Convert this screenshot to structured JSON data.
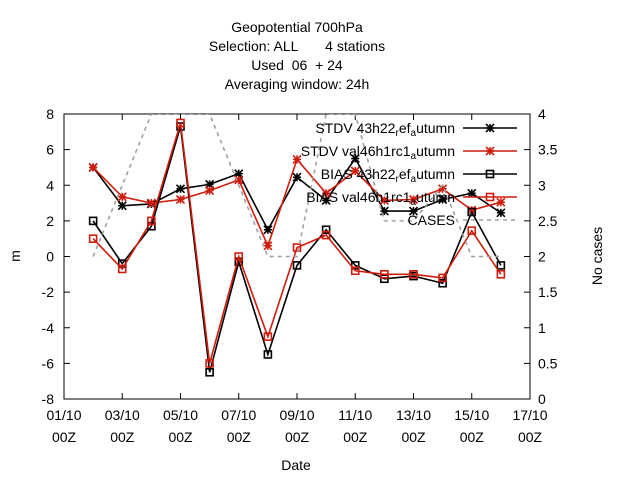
{
  "chart_data": {
    "type": "line",
    "title_lines": [
      "Geopotential 700hPa",
      "Selection: ALL       4 stations",
      "Used  06  + 24",
      "Averaging window: 24h"
    ],
    "xlabel": "Date",
    "ylabel": "m",
    "y2label": "No cases",
    "xlim": [
      1,
      17
    ],
    "ylim": [
      -8,
      8
    ],
    "y2lim": [
      0,
      4
    ],
    "x_ticks": [
      1,
      3,
      5,
      7,
      9,
      11,
      13,
      15,
      17
    ],
    "x_tick_labels": [
      [
        "01/10",
        "00Z"
      ],
      [
        "03/10",
        "00Z"
      ],
      [
        "05/10",
        "00Z"
      ],
      [
        "07/10",
        "00Z"
      ],
      [
        "09/10",
        "00Z"
      ],
      [
        "11/10",
        "00Z"
      ],
      [
        "13/10",
        "00Z"
      ],
      [
        "15/10",
        "00Z"
      ],
      [
        "17/10",
        "00Z"
      ]
    ],
    "y_ticks": [
      -8,
      -6,
      -4,
      -2,
      0,
      2,
      4,
      6,
      8
    ],
    "y2_ticks": [
      0,
      0.5,
      1,
      1.5,
      2,
      2.5,
      3,
      3.5,
      4
    ],
    "y2_tick_labels": [
      "0",
      "0.5",
      "1",
      "1.5",
      "2",
      "2.5",
      "3",
      "3.5",
      "4"
    ],
    "grid": false,
    "legend_position": "top-right",
    "x": [
      2,
      3,
      4,
      5,
      6,
      7,
      8,
      9,
      10,
      11,
      12,
      13,
      14,
      15,
      16
    ],
    "series": [
      {
        "name": "STDV 43h22_ref_autumn",
        "legend": {
          "before": "STDV 43h22",
          "sub": "r",
          "mid": "ef",
          "sub2": "a",
          "after": "utumn"
        },
        "color": "#000000",
        "marker": "star",
        "axis": "y1",
        "values": [
          5.0,
          2.85,
          2.95,
          3.8,
          4.05,
          4.65,
          1.5,
          4.45,
          3.15,
          5.5,
          2.55,
          2.55,
          3.2,
          3.55,
          2.45
        ]
      },
      {
        "name": "STDV val46h1rc1_autumn",
        "legend": {
          "before": "STDV val46h1rc1",
          "sub": "a",
          "mid": "",
          "sub2": "",
          "after": "utumn"
        },
        "color": "#d01c0c",
        "marker": "star",
        "axis": "y1",
        "values": [
          5.0,
          3.35,
          3.0,
          3.2,
          3.7,
          4.3,
          0.6,
          5.45,
          3.55,
          4.8,
          3.15,
          3.2,
          3.8,
          2.6,
          3.05
        ]
      },
      {
        "name": "BIAS 43h22_ref_autumn",
        "legend": {
          "before": "BIAS 43h22",
          "sub": "r",
          "mid": "ef",
          "sub2": "a",
          "after": "utumn"
        },
        "color": "#000000",
        "marker": "square",
        "axis": "y1",
        "values": [
          2.0,
          -0.4,
          1.7,
          7.3,
          -6.5,
          -0.3,
          -5.5,
          -0.5,
          1.5,
          -0.5,
          -1.25,
          -1.1,
          -1.5,
          2.5,
          -0.5
        ]
      },
      {
        "name": "BIAS val46h1rc1_autumn",
        "legend": {
          "before": "BIAS val46h1rc1",
          "sub": "a",
          "mid": "",
          "sub2": "",
          "after": "utumn"
        },
        "color": "#d01c0c",
        "marker": "square",
        "axis": "y1",
        "values": [
          1.0,
          -0.7,
          2.0,
          7.5,
          -6.0,
          0.0,
          -4.5,
          0.5,
          1.2,
          -0.8,
          -1.0,
          -1.0,
          -1.2,
          1.45,
          -1.0
        ]
      },
      {
        "name": "CASES",
        "legend": {
          "before": "CASES",
          "sub": "",
          "mid": "",
          "sub2": "",
          "after": ""
        },
        "color": "#a0a0a0",
        "marker": "none",
        "dashed": true,
        "axis": "y2",
        "x": [
          2,
          3,
          4,
          5,
          6,
          7,
          8,
          9,
          10,
          11,
          12,
          13,
          14,
          15,
          16
        ],
        "values": [
          2.0,
          3.0,
          4.0,
          4.0,
          4.0,
          3.0,
          2.0,
          2.0,
          4.0,
          4.0,
          2.5,
          2.5,
          3.0,
          2.0,
          2.0
        ]
      }
    ]
  }
}
